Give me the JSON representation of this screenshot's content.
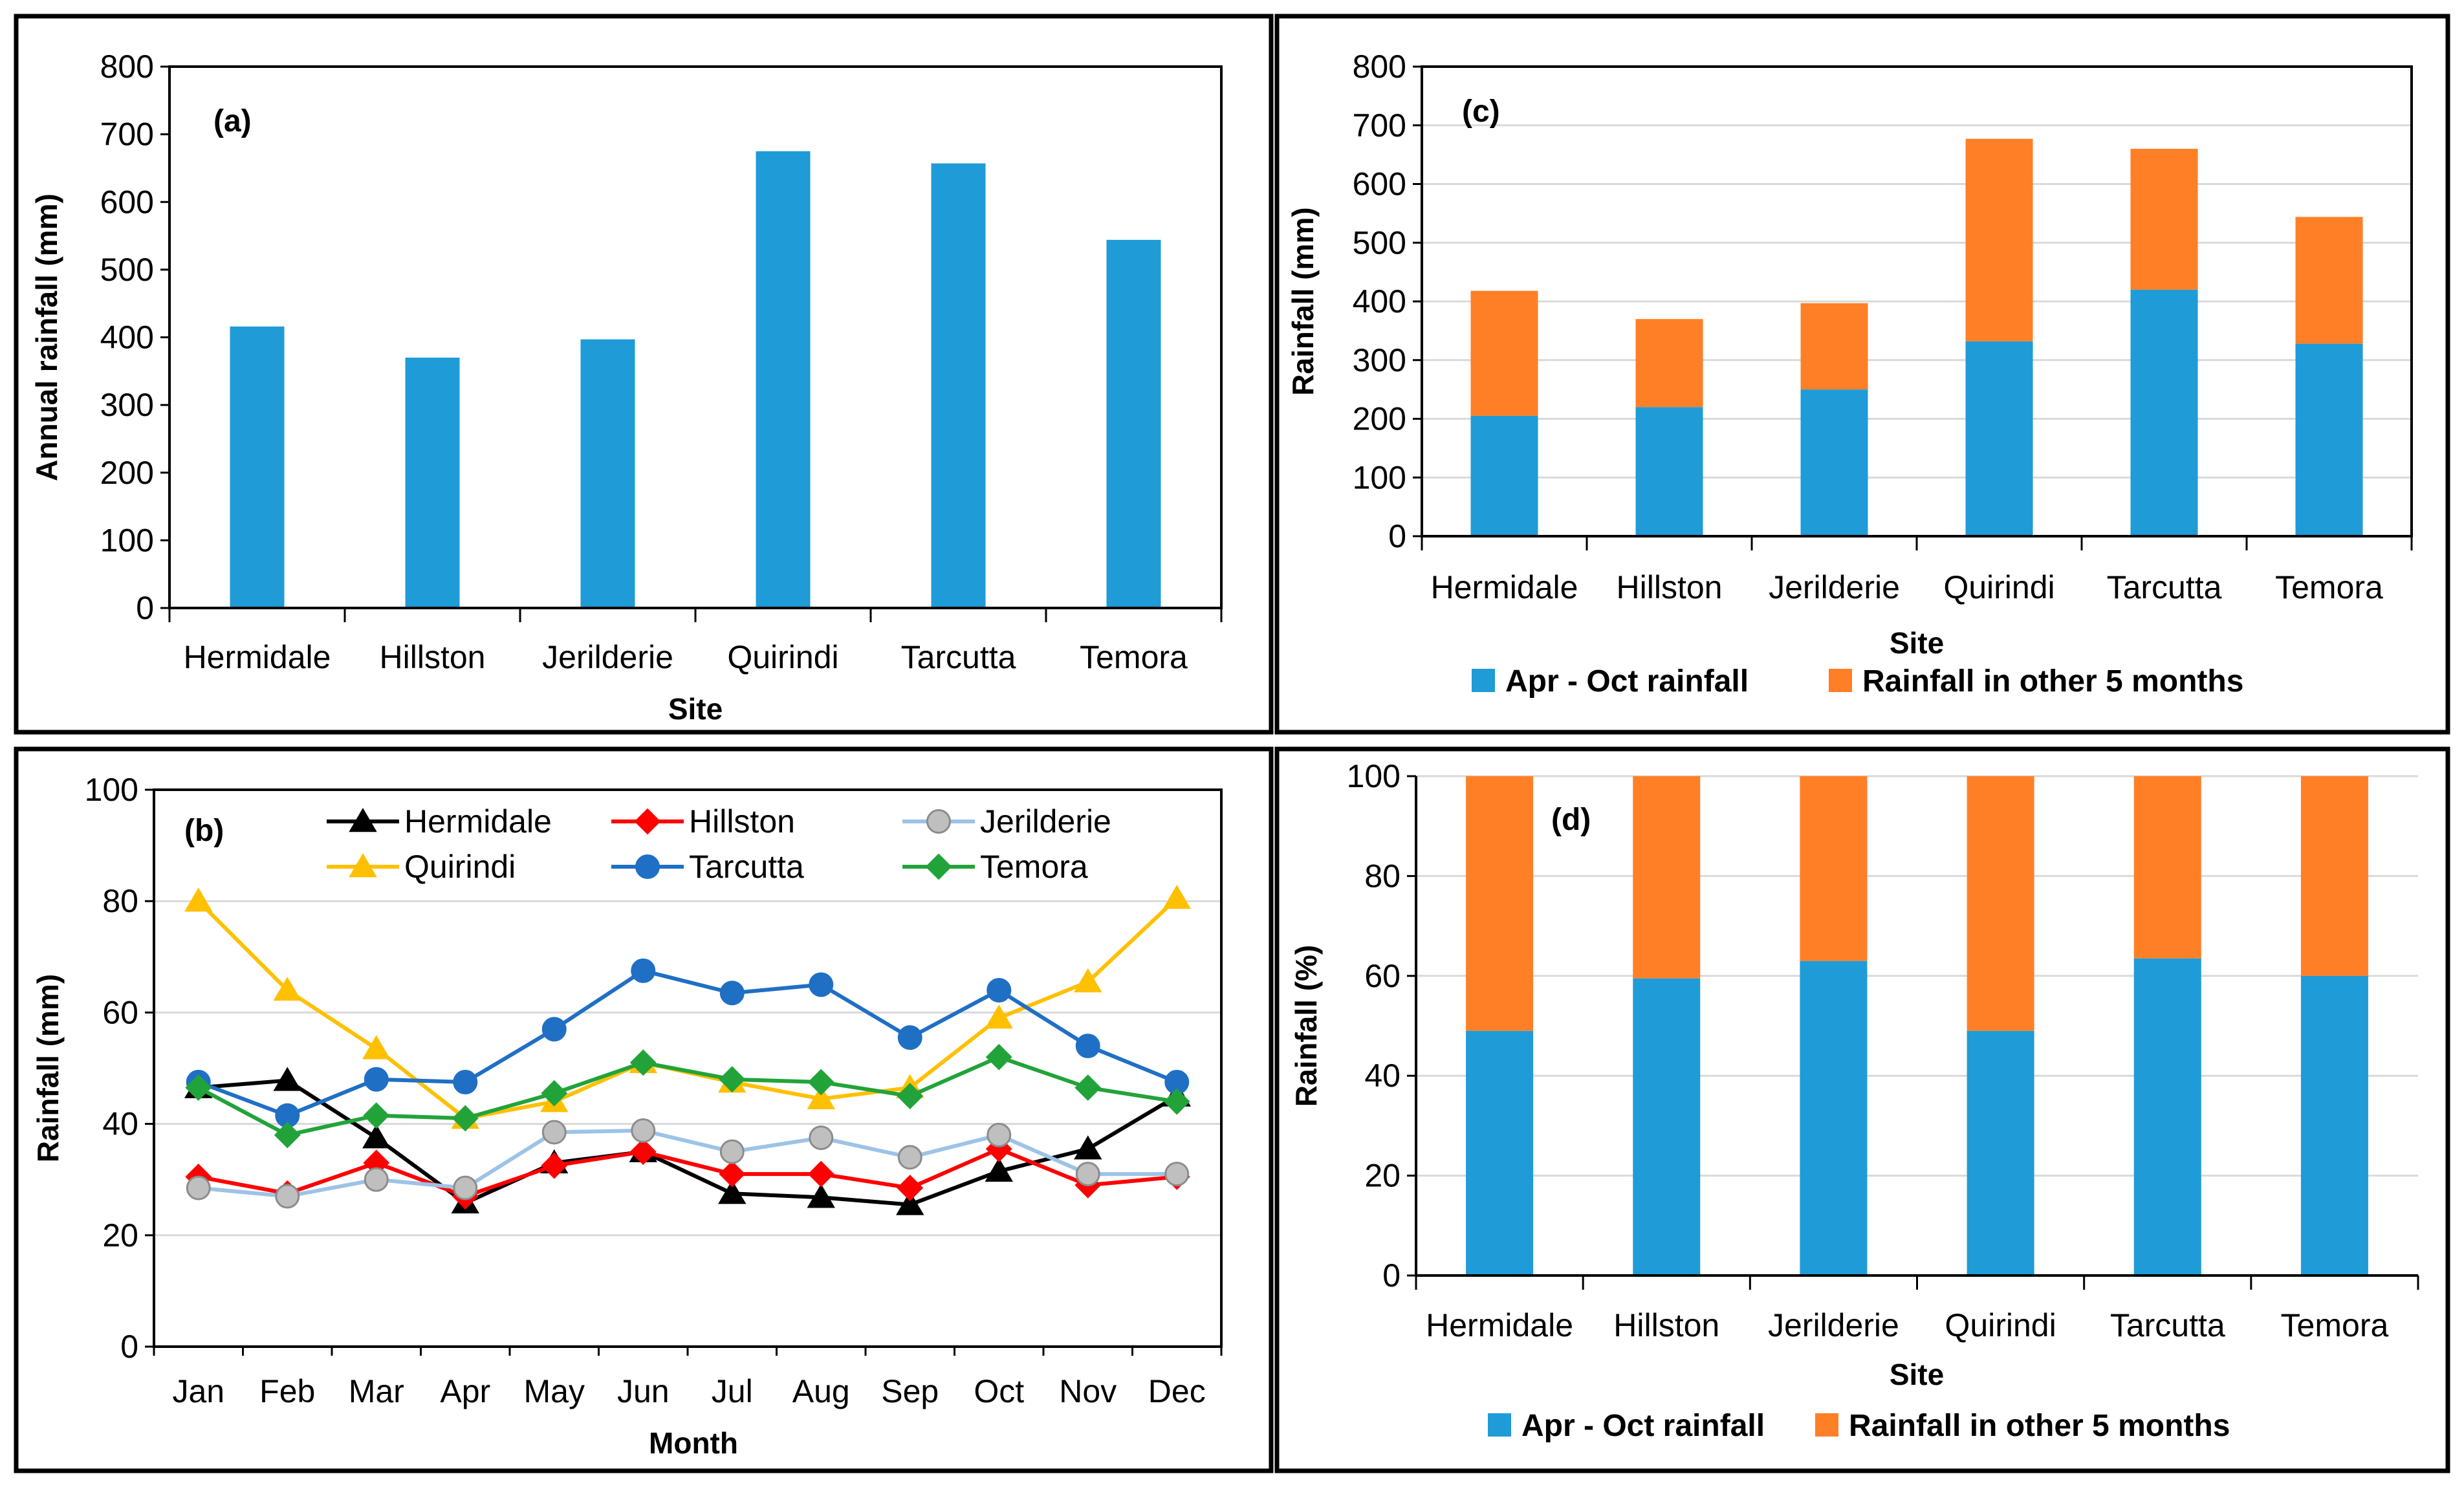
{
  "colors": {
    "apr_oct": "#1F9BD7",
    "other": "#FF7F27",
    "bar": "#1F9BD7",
    "gridline": "#D9D9D9",
    "Hermidale": "#000000",
    "Hillston": "#FF0000",
    "Jerilderie": "#9DC3E6",
    "Quirindi": "#FFC000",
    "Tarcutta": "#1F6FC5",
    "Temora": "#22A33A"
  },
  "chart_data": [
    {
      "id": "a",
      "type": "bar",
      "panel_label": "(a)",
      "title": "",
      "xlabel": "Site",
      "ylabel": "Annual rainfall (mm)",
      "ylim": [
        0,
        800
      ],
      "ytick_labels": [
        "0",
        "100",
        "200",
        "300",
        "400",
        "500",
        "600",
        "700",
        "800"
      ],
      "grid": false,
      "categories": [
        "Hermidale",
        "Hillston",
        "Jerilderie",
        "Quirindi",
        "Tarcutta",
        "Temora"
      ],
      "values": [
        416,
        370,
        397,
        675,
        657,
        544
      ]
    },
    {
      "id": "b",
      "type": "line",
      "panel_label": "(b)",
      "title": "",
      "xlabel": "Month",
      "ylabel": "Rainfall (mm)",
      "ylim": [
        0,
        100
      ],
      "ytick_labels": [
        "0",
        "20",
        "40",
        "60",
        "80",
        "100"
      ],
      "grid": true,
      "legend_position": "top",
      "categories": [
        "Jan",
        "Feb",
        "Mar",
        "Apr",
        "May",
        "Jun",
        "Jul",
        "Aug",
        "Sep",
        "Oct",
        "Nov",
        "Dec"
      ],
      "series": [
        {
          "name": "Hermidale",
          "marker": "triangle",
          "values": [
            46.5,
            47.8,
            37.5,
            25.8,
            33,
            35,
            27.5,
            26.8,
            25.5,
            31.5,
            35.5,
            45
          ]
        },
        {
          "name": "Hillston",
          "marker": "diamond",
          "values": [
            30.5,
            27.5,
            33,
            27,
            32.5,
            35,
            31,
            31,
            28.5,
            35.5,
            29,
            30.5
          ]
        },
        {
          "name": "Jerilderie",
          "marker": "circle",
          "values": [
            28.5,
            27,
            30,
            28.5,
            38.5,
            38.8,
            35,
            37.5,
            34,
            38,
            31,
            31
          ]
        },
        {
          "name": "Quirindi",
          "marker": "triangle",
          "values": [
            80,
            64,
            53.5,
            41,
            44,
            51,
            47.5,
            44.5,
            46.5,
            59,
            65.5,
            80.5
          ]
        },
        {
          "name": "Tarcutta",
          "marker": "circle",
          "values": [
            47.5,
            41.5,
            48,
            47.5,
            57,
            67.5,
            63.5,
            65,
            55.5,
            64,
            54,
            47.5
          ]
        },
        {
          "name": "Temora",
          "marker": "diamond",
          "values": [
            46.5,
            38,
            41.5,
            41,
            45.5,
            51,
            48,
            47.5,
            45,
            52,
            46.5,
            44
          ]
        }
      ]
    },
    {
      "id": "c",
      "type": "bar",
      "stacked": true,
      "panel_label": "(c)",
      "title": "",
      "xlabel": "Site",
      "ylabel": "Rainfall (mm)",
      "ylim": [
        0,
        800
      ],
      "ytick_labels": [
        "0",
        "100",
        "200",
        "300",
        "400",
        "500",
        "600",
        "700",
        "800"
      ],
      "grid": true,
      "legend_position": "bottom",
      "categories": [
        "Hermidale",
        "Hillston",
        "Jerilderie",
        "Quirindi",
        "Tarcutta",
        "Temora"
      ],
      "series": [
        {
          "name": "Apr - Oct rainfall",
          "values": [
            205,
            220,
            250,
            332,
            420,
            328
          ]
        },
        {
          "name": "Rainfall in other 5 months",
          "values": [
            213,
            150,
            147,
            345,
            240,
            216
          ]
        }
      ]
    },
    {
      "id": "d",
      "type": "bar",
      "stacked": true,
      "panel_label": "(d)",
      "title": "",
      "xlabel": "Site",
      "ylabel": "Rainfall (%)",
      "ylim": [
        0,
        100
      ],
      "ytick_labels": [
        "0",
        "20",
        "40",
        "60",
        "80",
        "100"
      ],
      "grid": true,
      "legend_position": "bottom",
      "categories": [
        "Hermidale",
        "Hillston",
        "Jerilderie",
        "Quirindi",
        "Tarcutta",
        "Temora"
      ],
      "series": [
        {
          "name": "Apr - Oct rainfall",
          "values": [
            49,
            59.5,
            63,
            49,
            63.5,
            60
          ]
        },
        {
          "name": "Rainfall in other 5 months",
          "values": [
            51,
            40.5,
            37,
            51,
            36.5,
            40
          ]
        }
      ]
    }
  ]
}
